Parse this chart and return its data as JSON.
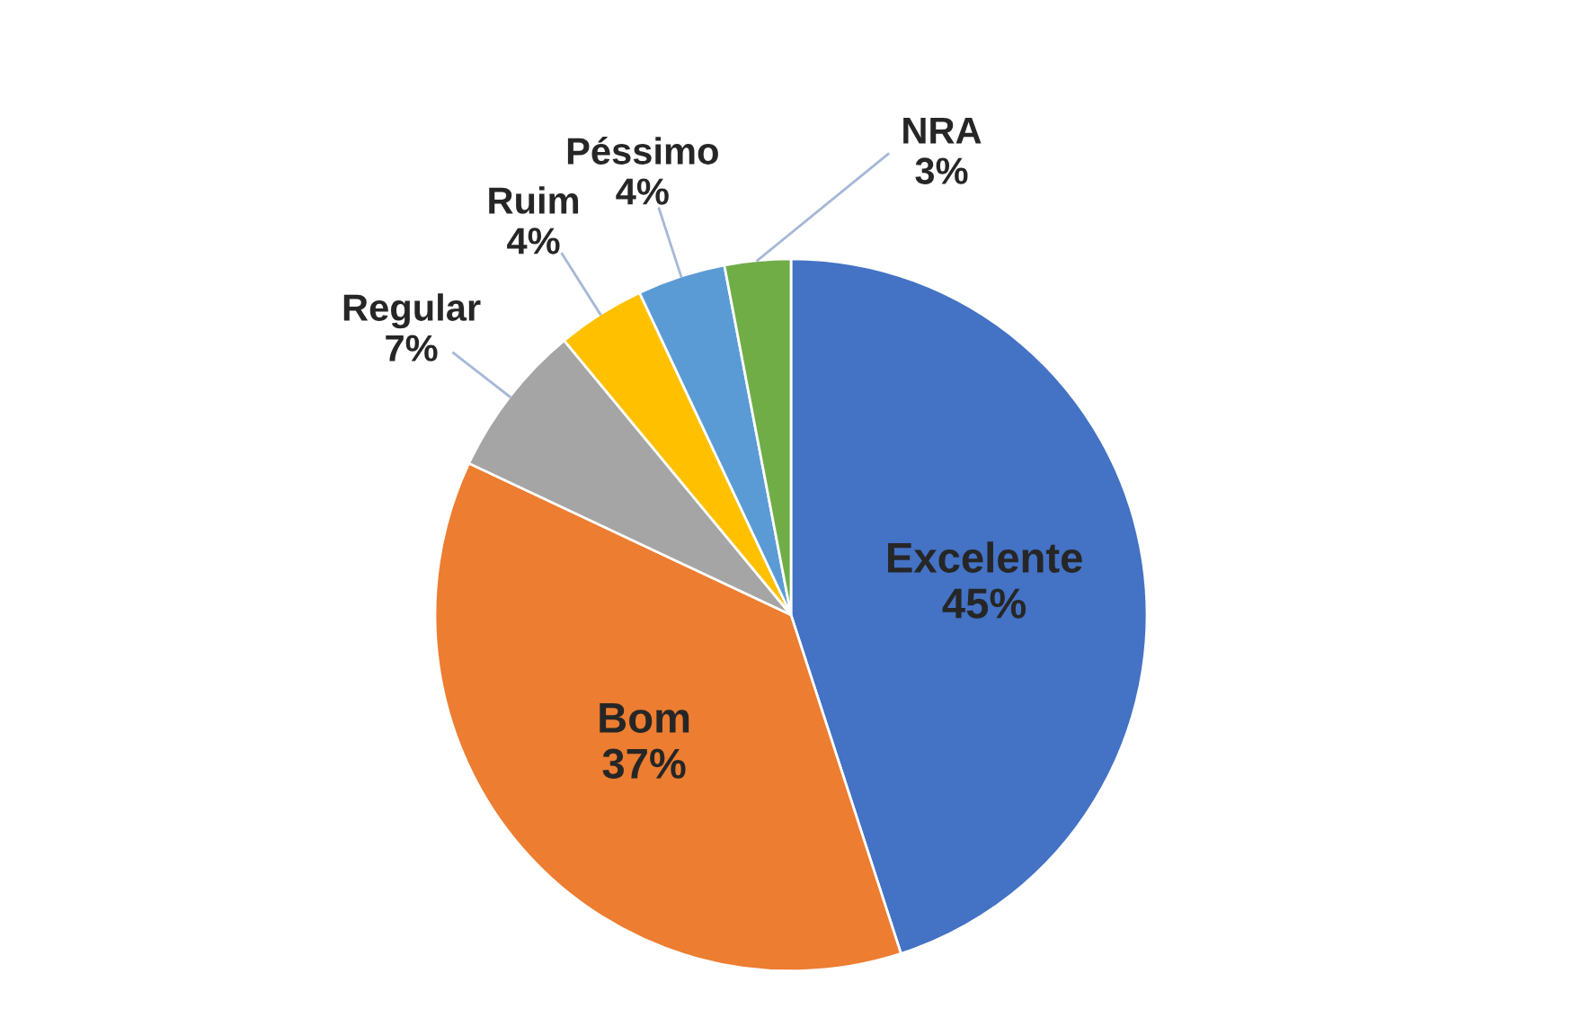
{
  "chart_data": {
    "type": "pie",
    "categories": [
      "Excelente",
      "Bom",
      "Regular",
      "Ruim",
      "Péssimo",
      "NRA"
    ],
    "values": [
      45,
      37,
      7,
      4,
      4,
      3
    ],
    "colors": [
      "#4472c4",
      "#ed7d31",
      "#a5a5a5",
      "#ffc000",
      "#5b9bd5",
      "#70ad47"
    ],
    "value_labels": [
      "45%",
      "37%",
      "7%",
      "4%",
      "4%",
      "3%"
    ],
    "legend": false
  }
}
